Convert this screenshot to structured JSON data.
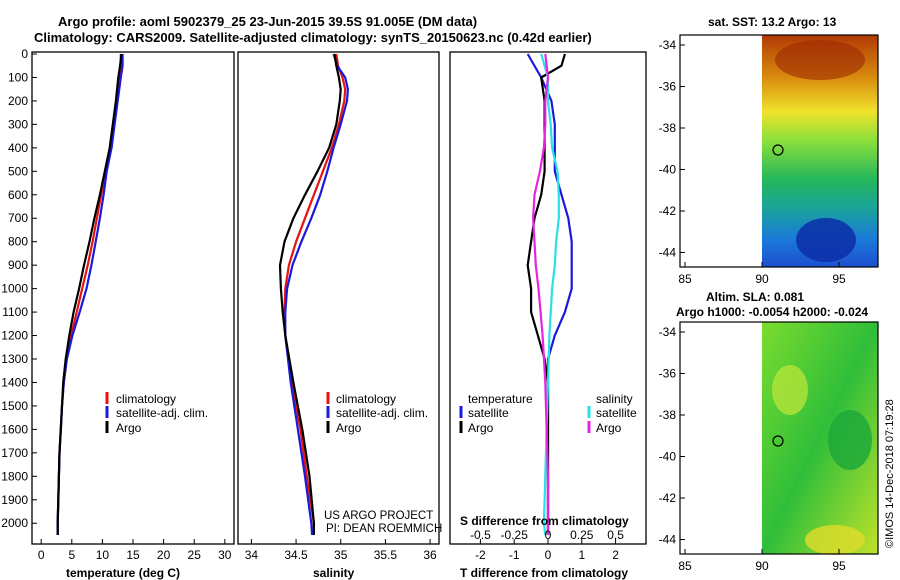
{
  "header": {
    "line1": "Argo profile: aoml 5902379_25 23-Jun-2015 39.5S 91.005E (DM data)",
    "line2": "Climatology: CARS2009. Satellite-adjusted climatology: synTS_20150623.nc (0.42d earlier)"
  },
  "colors": {
    "climatology": "#e8120f",
    "satellite": "#1a1adc",
    "argo": "#000000",
    "satellite_s": "#28e0e6",
    "argo_s": "#e426e0"
  },
  "chart_data": [
    {
      "type": "line",
      "id": "temperature",
      "xlabel": "temperature (deg C)",
      "ylabel": "",
      "xlim": [
        -1.5,
        31.5
      ],
      "ylim": [
        2080,
        0
      ],
      "xticks": [
        "0",
        "5",
        "10",
        "15",
        "20",
        "25",
        "30"
      ],
      "yticks": [
        "0",
        "100",
        "200",
        "300",
        "400",
        "500",
        "600",
        "700",
        "800",
        "900",
        "1000",
        "1100",
        "1200",
        "1300",
        "1400",
        "1500",
        "1600",
        "1700",
        "1800",
        "1900",
        "2000"
      ],
      "legend": [
        "climatology",
        "satellite-adj. clim.",
        "Argo"
      ],
      "series": [
        {
          "name": "climatology",
          "depth": [
            0,
            50,
            100,
            200,
            300,
            400,
            500,
            600,
            700,
            800,
            900,
            1000,
            1100,
            1200,
            1300,
            1400,
            1500,
            1600,
            1700,
            1800,
            1900,
            2000,
            2050
          ],
          "values": [
            13.0,
            13.0,
            12.8,
            12.3,
            11.8,
            11.3,
            10.5,
            9.8,
            9.1,
            8.4,
            7.6,
            6.7,
            5.8,
            4.9,
            4.1,
            3.7,
            3.4,
            3.2,
            3.0,
            2.9,
            2.8,
            2.7,
            2.7
          ]
        },
        {
          "name": "satellite-adj. clim.",
          "depth": [
            0,
            50,
            100,
            200,
            300,
            400,
            500,
            600,
            700,
            800,
            900,
            1000,
            1100,
            1200,
            1300,
            1400,
            1500,
            1600,
            1700,
            1800,
            1900,
            2000,
            2050
          ],
          "values": [
            13.3,
            13.3,
            13.0,
            12.5,
            12.0,
            11.5,
            10.7,
            10.2,
            9.6,
            8.9,
            8.2,
            7.4,
            6.3,
            5.1,
            4.2,
            3.7,
            3.4,
            3.2,
            3.0,
            2.9,
            2.8,
            2.7,
            2.7
          ]
        },
        {
          "name": "Argo",
          "depth": [
            0,
            50,
            100,
            200,
            300,
            400,
            500,
            600,
            700,
            800,
            900,
            1000,
            1100,
            1200,
            1300,
            1400,
            1500,
            1600,
            1700,
            1800,
            1900,
            2000,
            2050
          ],
          "values": [
            13.1,
            12.9,
            12.6,
            12.2,
            11.7,
            11.2,
            10.4,
            9.6,
            8.7,
            7.9,
            7.0,
            6.2,
            5.3,
            4.6,
            4.0,
            3.6,
            3.4,
            3.2,
            3.0,
            2.9,
            2.8,
            2.7,
            2.7
          ]
        }
      ]
    },
    {
      "type": "line",
      "id": "salinity",
      "xlabel": "salinity",
      "ylabel": "",
      "xlim": [
        33.85,
        36.1
      ],
      "ylim": [
        2080,
        0
      ],
      "xticks": [
        "34",
        "34.5",
        "35",
        "35.5",
        "36"
      ],
      "legend": [
        "climatology",
        "satellite-adj. clim.",
        "Argo"
      ],
      "series": [
        {
          "name": "climatology",
          "depth": [
            0,
            50,
            100,
            150,
            200,
            300,
            400,
            500,
            600,
            700,
            800,
            900,
            1000,
            1100,
            1200,
            1400,
            1600,
            1800,
            2000,
            2050
          ],
          "values": [
            34.95,
            34.97,
            35.02,
            35.05,
            35.04,
            34.98,
            34.9,
            34.8,
            34.7,
            34.6,
            34.5,
            34.42,
            34.38,
            34.37,
            34.38,
            34.45,
            34.55,
            34.62,
            34.7,
            34.7
          ]
        },
        {
          "name": "satellite-adj. clim.",
          "depth": [
            0,
            50,
            100,
            150,
            200,
            300,
            400,
            500,
            600,
            700,
            800,
            900,
            1000,
            1100,
            1200,
            1400,
            1600,
            1800,
            2000,
            2050
          ],
          "values": [
            34.92,
            34.96,
            35.05,
            35.08,
            35.07,
            35.0,
            34.92,
            34.85,
            34.77,
            34.67,
            34.56,
            34.46,
            34.4,
            34.38,
            34.38,
            34.44,
            34.52,
            34.6,
            34.67,
            34.68
          ]
        },
        {
          "name": "Argo",
          "depth": [
            0,
            50,
            100,
            150,
            200,
            300,
            400,
            500,
            600,
            700,
            800,
            900,
            1000,
            1100,
            1200,
            1400,
            1600,
            1800,
            2000,
            2050
          ],
          "values": [
            34.93,
            34.95,
            34.98,
            35.0,
            34.99,
            34.95,
            34.87,
            34.74,
            34.6,
            34.47,
            34.37,
            34.32,
            34.33,
            34.35,
            34.38,
            34.47,
            34.57,
            34.65,
            34.7,
            34.7
          ]
        }
      ]
    },
    {
      "type": "line",
      "id": "difference",
      "xlabel": "T difference from climatology",
      "xlabel_top": "S difference from climatology",
      "xlim": [
        -2.9,
        2.9
      ],
      "ylim": [
        2080,
        0
      ],
      "xticks": [
        "-2",
        "-1",
        "0",
        "1",
        "2"
      ],
      "xticks_s": [
        "-0.5",
        "-0.25",
        "0",
        "0.25",
        "0.5"
      ],
      "legend_t_title": "temperature",
      "legend_s_title": "salinity",
      "legend_t": [
        "satellite",
        "Argo"
      ],
      "legend_s": [
        "satellite",
        "Argo"
      ],
      "series": [
        {
          "name": "temperature satellite",
          "depth": [
            0,
            100,
            200,
            300,
            400,
            500,
            600,
            700,
            800,
            900,
            1000,
            1100,
            1200,
            1300,
            1400,
            1500,
            1700,
            1900,
            2050
          ],
          "values": [
            -0.6,
            -0.2,
            0.1,
            0.2,
            0.2,
            0.2,
            0.4,
            0.6,
            0.7,
            0.7,
            0.7,
            0.5,
            0.2,
            0.0,
            0.0,
            0.0,
            0.0,
            0.0,
            0.0
          ]
        },
        {
          "name": "temperature Argo",
          "depth": [
            0,
            50,
            100,
            200,
            300,
            400,
            500,
            600,
            700,
            800,
            900,
            1000,
            1100,
            1200,
            1300,
            1400,
            1500,
            1700,
            1900,
            2050
          ],
          "values": [
            0.5,
            0.4,
            -0.2,
            -0.1,
            -0.1,
            -0.1,
            -0.1,
            -0.2,
            -0.4,
            -0.5,
            -0.6,
            -0.5,
            -0.5,
            -0.3,
            -0.1,
            0.0,
            0.0,
            0.0,
            0.0,
            0.0
          ]
        },
        {
          "name": "salinity satellite",
          "depth": [
            0,
            100,
            200,
            300,
            400,
            500,
            600,
            700,
            800,
            900,
            1000,
            1200,
            1400,
            1600,
            1800,
            2000,
            2050
          ],
          "values": [
            -0.05,
            0.0,
            0.0,
            0.02,
            0.03,
            0.07,
            0.08,
            0.08,
            0.06,
            0.05,
            0.03,
            0.01,
            0.0,
            -0.01,
            -0.02,
            -0.03,
            -0.02
          ]
        },
        {
          "name": "salinity Argo",
          "depth": [
            0,
            100,
            200,
            300,
            400,
            500,
            600,
            700,
            800,
            900,
            1000,
            1200,
            1400,
            1600,
            1800,
            2000,
            2050
          ],
          "values": [
            -0.02,
            0.0,
            -0.02,
            -0.02,
            -0.03,
            -0.06,
            -0.1,
            -0.11,
            -0.1,
            -0.09,
            -0.07,
            -0.04,
            -0.02,
            -0.01,
            0.0,
            0.0,
            0.0
          ]
        }
      ]
    },
    {
      "type": "heatmap",
      "id": "sst_map",
      "title": "sat. SST: 13.2 Argo: 13",
      "xticks": [
        "85",
        "90",
        "95"
      ],
      "yticks": [
        "-34",
        "-36",
        "-38",
        "-40",
        "-42",
        "-44"
      ]
    },
    {
      "type": "heatmap",
      "id": "sla_map",
      "title": "Altim. SLA: 0.081",
      "subtitle": "Argo h1000: -0.0054 h2000: -0.024",
      "xticks": [
        "85",
        "90",
        "95"
      ],
      "yticks": [
        "-34",
        "-36",
        "-38",
        "-40",
        "-42",
        "-44"
      ]
    }
  ],
  "credits": {
    "project": "US ARGO PROJECT",
    "pi": "PI: DEAN ROEMMICH",
    "stamp": "©IMOS 14-Dec-2018 07:19:28"
  }
}
